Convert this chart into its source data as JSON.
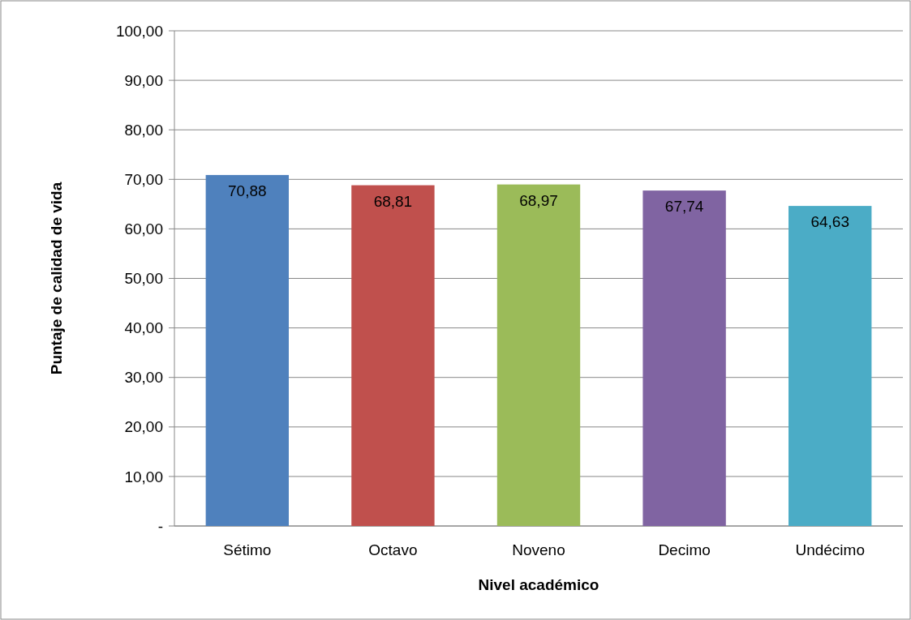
{
  "chart_data": {
    "type": "bar",
    "xlabel": "Nivel académico",
    "ylabel": "Puntaje de calidad de vida",
    "categories": [
      "Sétimo",
      "Octavo",
      "Noveno",
      "Decimo",
      "Undécimo"
    ],
    "values": [
      70.88,
      68.81,
      68.97,
      67.74,
      64.63
    ],
    "colors": [
      "#4f81bd",
      "#c0504d",
      "#9bbb59",
      "#8064a2",
      "#4bacc6"
    ],
    "value_labels": [
      "70,88",
      "68,81",
      "68,97",
      "67,74",
      "64,63"
    ],
    "ylim": [
      0,
      100
    ],
    "yticks": [
      {
        "value": 0,
        "label": "-"
      },
      {
        "value": 10,
        "label": "10,00"
      },
      {
        "value": 20,
        "label": "20,00"
      },
      {
        "value": 30,
        "label": "30,00"
      },
      {
        "value": 40,
        "label": "40,00"
      },
      {
        "value": 50,
        "label": "50,00"
      },
      {
        "value": 60,
        "label": "60,00"
      },
      {
        "value": 70,
        "label": "70,00"
      },
      {
        "value": 80,
        "label": "80,00"
      },
      {
        "value": 90,
        "label": "90,00"
      },
      {
        "value": 100,
        "label": "100,00"
      }
    ],
    "grid": "y"
  }
}
